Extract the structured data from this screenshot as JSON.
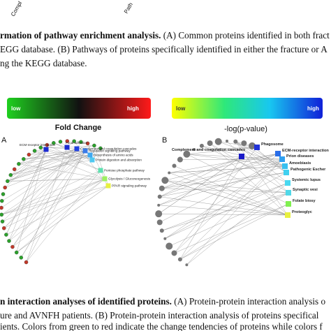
{
  "header": {
    "fragments": [
      "Compl",
      "Path"
    ]
  },
  "caption_top": {
    "bold": "rmation of pathway enrichment analysis.",
    "line1_rest": " (A) Common proteins identified in both fract",
    "line2": "EGG database. (B) Pathways of proteins specifically identified in either the fracture or A",
    "line3": "ng the KEGG database."
  },
  "legend_left": {
    "low": "low",
    "high": "high",
    "title": "Fold Change"
  },
  "legend_right": {
    "low": "low",
    "high": "high",
    "title": "-log(p-value)"
  },
  "panel_a": {
    "label": "A",
    "pathways": [
      "ECM-receptor interaction",
      "Focal adhesion",
      "Complement and coagulation cascades",
      "Regulation signaling pathway",
      "Biosynthesis of amino acids",
      "Protein digestion and absorption",
      "Pentose phosphate pathway",
      "Glycolysis / Gluconeogenesis",
      "PPAR signaling pathway"
    ]
  },
  "panel_b": {
    "label": "B",
    "pathways": [
      "Complement and coagulation cascades",
      "Phagosome",
      "ECM-receptor interaction",
      "Prion diseases",
      "Amoebiasis",
      "Pathogenic Escher",
      "Systemic lupus",
      "Synaptic vesi",
      "Folate biosy",
      "Proteoglyc"
    ]
  },
  "caption_bottom": {
    "bold": "n interaction analyses of identified proteins.",
    "line1_rest": " (A) Protein-protein interaction analysis o",
    "line2": "ure and AVNFH patients. (B) Protein-protein interaction analysis of proteins specifical",
    "line3": "ients. Colors from green to red indicate the change tendencies of proteins while colors f"
  }
}
